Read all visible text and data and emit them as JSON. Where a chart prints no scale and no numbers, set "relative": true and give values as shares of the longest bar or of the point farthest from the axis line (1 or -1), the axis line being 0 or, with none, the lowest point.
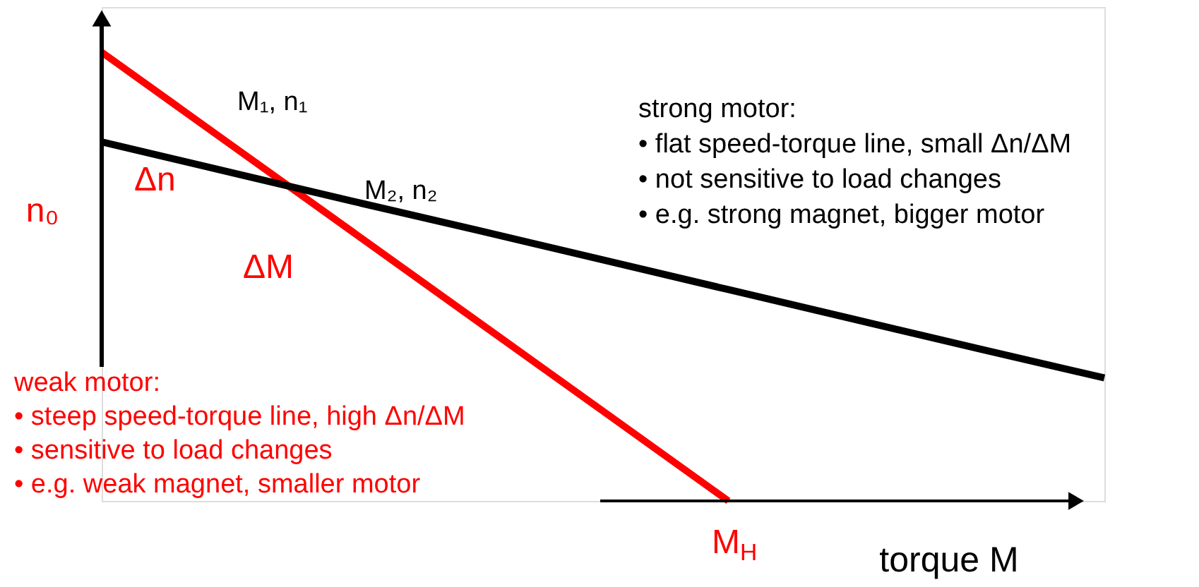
{
  "chart_data": {
    "type": "line",
    "relative": true,
    "xlabel": "torque M",
    "line_style": "solid",
    "categories": [
      null,
      null,
      null,
      null,
      null,
      null,
      null,
      null,
      null
    ],
    "series": [
      {
        "color": "#ff0000",
        "values": [
          1.0,
          0.8,
          0.6,
          0.4,
          0.2,
          0,
          null,
          null,
          null
        ]
      },
      {
        "color": "#000000",
        "values": [
          0.8,
          0.734,
          0.668,
          0.603,
          0.537,
          0.471,
          0.405,
          0.339,
          0.274
        ]
      }
    ],
    "annotations": [
      "M₁, n₁",
      "M₂, n₂",
      "M$_{H}$",
      "Δn",
      "ΔM",
      "n₀",
      "strong motor:\n• flat speed-torque line, small Δn/ΔM\n• not sensitive to load changes\n• e.g. strong magnet, bigger motor",
      "weak motor:\n• steep speed-torque line, high Δn/ΔM\n• sensitive to load changes\n• e.g. weak magnet, smaller motor"
    ]
  }
}
